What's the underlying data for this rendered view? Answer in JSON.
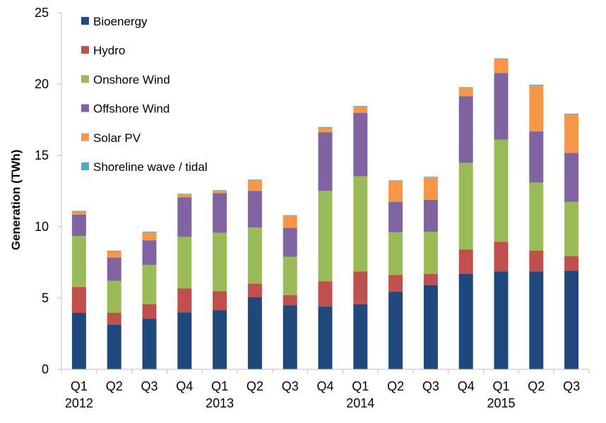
{
  "chart_data": {
    "type": "bar",
    "stacked": true,
    "title": "",
    "xlabel": "",
    "ylabel": "Generation (TWh)",
    "ylim": [
      0,
      25
    ],
    "yticks": [
      0,
      5,
      10,
      15,
      20,
      25
    ],
    "grid": false,
    "legend_position": "top-left",
    "categories": [
      "Q1 2012",
      "Q2 2012",
      "Q3 2012",
      "Q4 2012",
      "Q1 2013",
      "Q2 2013",
      "Q3 2013",
      "Q4 2013",
      "Q1 2014",
      "Q2 2014",
      "Q3 2014",
      "Q4 2014",
      "Q1 2015",
      "Q2 2015",
      "Q3 2015"
    ],
    "category_labels": [
      {
        "quarter": "Q1",
        "year": "2012"
      },
      {
        "quarter": "Q2",
        "year": ""
      },
      {
        "quarter": "Q3",
        "year": ""
      },
      {
        "quarter": "Q4",
        "year": ""
      },
      {
        "quarter": "Q1",
        "year": "2013"
      },
      {
        "quarter": "Q2",
        "year": ""
      },
      {
        "quarter": "Q3",
        "year": ""
      },
      {
        "quarter": "Q4",
        "year": ""
      },
      {
        "quarter": "Q1",
        "year": "2014"
      },
      {
        "quarter": "Q2",
        "year": ""
      },
      {
        "quarter": "Q3",
        "year": ""
      },
      {
        "quarter": "Q4",
        "year": ""
      },
      {
        "quarter": "Q1",
        "year": "2015"
      },
      {
        "quarter": "Q2",
        "year": ""
      },
      {
        "quarter": "Q3",
        "year": ""
      }
    ],
    "series": [
      {
        "name": "Bioenergy",
        "color": "#1f497d",
        "values": [
          3.96,
          3.12,
          3.54,
          4.0,
          4.15,
          5.05,
          4.48,
          4.4,
          4.57,
          5.45,
          5.91,
          6.7,
          6.86,
          6.86,
          6.91
        ]
      },
      {
        "name": "Hydro",
        "color": "#c0504d",
        "values": [
          1.82,
          0.84,
          1.03,
          1.67,
          1.32,
          0.96,
          0.72,
          1.78,
          2.29,
          1.16,
          0.79,
          1.71,
          2.08,
          1.46,
          1.03
        ]
      },
      {
        "name": "Onshore Wind",
        "color": "#9bbb59",
        "values": [
          3.57,
          2.24,
          2.75,
          3.62,
          4.1,
          3.93,
          2.69,
          6.33,
          6.68,
          2.99,
          2.95,
          6.07,
          7.16,
          4.77,
          3.8
        ]
      },
      {
        "name": "Offshore Wind",
        "color": "#8064a2",
        "values": [
          1.5,
          1.64,
          1.73,
          2.77,
          2.79,
          2.57,
          2.03,
          4.1,
          4.43,
          2.13,
          2.24,
          4.67,
          4.68,
          3.59,
          3.43
        ]
      },
      {
        "name": "Solar PV",
        "color": "#f79646",
        "values": [
          0.21,
          0.43,
          0.55,
          0.2,
          0.15,
          0.74,
          0.84,
          0.33,
          0.46,
          1.47,
          1.56,
          0.58,
          0.98,
          3.22,
          2.69
        ]
      },
      {
        "name": "Shoreline wave / tidal",
        "color": "#4bacc6",
        "values": [
          0.05,
          0.05,
          0.05,
          0.05,
          0.05,
          0.05,
          0.05,
          0.05,
          0.04,
          0.05,
          0.05,
          0.05,
          0.04,
          0.05,
          0.06
        ]
      }
    ]
  }
}
